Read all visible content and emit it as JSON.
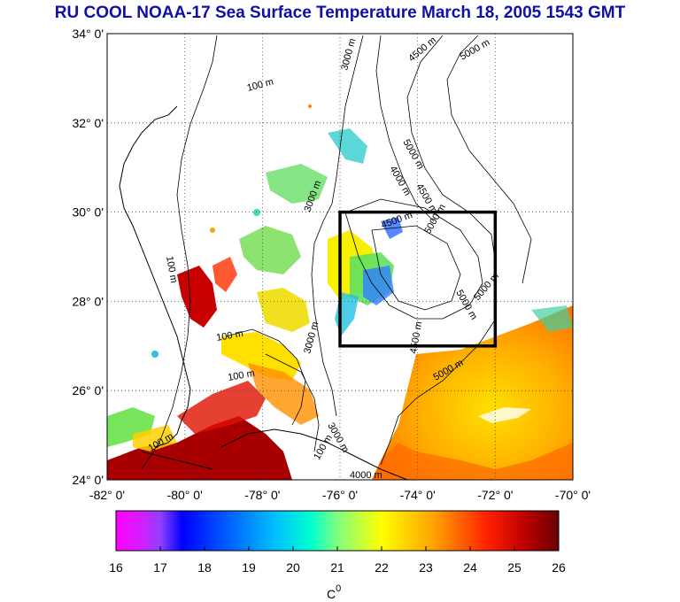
{
  "title": "RU COOL  NOAA-17 Sea Surface Temperature March 18, 2005 1543 GMT",
  "map": {
    "lon_ticks": [
      "-82° 0'",
      "-80° 0'",
      "-78° 0'",
      "-76° 0'",
      "-74° 0'",
      "-72° 0'",
      "-70° 0'"
    ],
    "lat_ticks": [
      "34° 0'",
      "32° 0'",
      "30° 0'",
      "28° 0'",
      "26° 0'",
      "24° 0'"
    ],
    "lon_range": [
      -82,
      -70
    ],
    "lat_range": [
      24,
      34
    ],
    "grid": "dotted",
    "study_box": {
      "lon": [
        -76,
        -72
      ],
      "lat": [
        27,
        30
      ]
    },
    "contour_labels": [
      "100 m",
      "100 m",
      "100 m",
      "100 m",
      "100 m",
      "100 m",
      "3000 m",
      "3000 m",
      "3000 m",
      "3000 m",
      "4000 m",
      "4000 m",
      "4500 m",
      "4500 m",
      "4500 m",
      "4500 m",
      "5000 m",
      "5000 m",
      "5000 m",
      "5000 m",
      "5000 m",
      "5000 m"
    ]
  },
  "colorbar": {
    "ticks": [
      "16",
      "17",
      "18",
      "19",
      "20",
      "21",
      "22",
      "23",
      "24",
      "25",
      "26"
    ],
    "unit": "C",
    "unit_sup": "0",
    "range": [
      16,
      26
    ],
    "colors": [
      "#ff00ff",
      "#0000ff",
      "#00ffff",
      "#ffff00",
      "#ff8000",
      "#ff0000",
      "#7a0000"
    ]
  }
}
